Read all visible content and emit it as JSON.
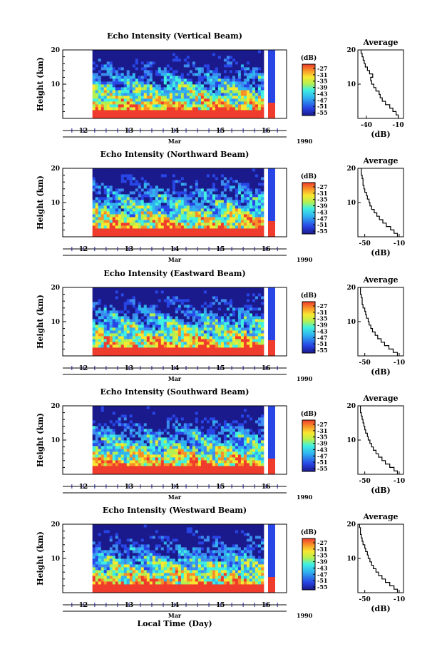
{
  "figure": {
    "xlabel": "Local Time (Day)",
    "month_label": "Mar",
    "year_label": "1990",
    "days": [
      "12",
      "13",
      "14",
      "15",
      "16"
    ],
    "colorbar_unit": "(dB)",
    "colorbar_ticks": [
      "-27",
      "-31",
      "-35",
      "-39",
      "-43",
      "-47",
      "-51",
      "-55"
    ],
    "average_title": "Average",
    "avg_xlabel": "(dB)",
    "ylabel": "Height (km)",
    "yticks": [
      "20",
      "10"
    ]
  },
  "chart_data": [
    {
      "type": "heatmap",
      "title": "Echo Intensity (Vertical Beam)",
      "ylabel": "Height (km)",
      "ylim": [
        0,
        20
      ],
      "x_days": [
        11.55,
        16.45
      ],
      "data_start_day": 12.2,
      "data_end_day": 15.95,
      "color_range_dB": [
        -55,
        -27
      ],
      "average": {
        "title": "Average",
        "xlabel": "(dB)",
        "xticks": [
          "-40",
          "-10"
        ],
        "xlim": [
          -48,
          -5
        ],
        "profile": [
          [
            0.5,
            -10
          ],
          [
            1.5,
            -12
          ],
          [
            2.5,
            -15
          ],
          [
            3.5,
            -18
          ],
          [
            4.5,
            -22
          ],
          [
            5.5,
            -25
          ],
          [
            6.5,
            -27
          ],
          [
            7.5,
            -28
          ],
          [
            8.5,
            -31
          ],
          [
            9.5,
            -33
          ],
          [
            10.5,
            -35
          ],
          [
            11.5,
            -36
          ],
          [
            12.5,
            -34
          ],
          [
            13.5,
            -37
          ],
          [
            14.5,
            -39
          ],
          [
            15.5,
            -41
          ],
          [
            16.5,
            -42
          ],
          [
            17.5,
            -43
          ],
          [
            18.5,
            -44
          ],
          [
            19.5,
            -45
          ]
        ]
      }
    },
    {
      "type": "heatmap",
      "title": "Echo Intensity (Northward Beam)",
      "ylabel": "Height (km)",
      "ylim": [
        0,
        20
      ],
      "x_days": [
        11.55,
        16.45
      ],
      "data_start_day": 12.2,
      "data_end_day": 15.95,
      "color_range_dB": [
        -55,
        -27
      ],
      "average": {
        "title": "Average",
        "xlabel": "(dB)",
        "xticks": [
          "-50",
          "-10"
        ],
        "xlim": [
          -58,
          -5
        ],
        "profile": [
          [
            0.5,
            -12
          ],
          [
            1.5,
            -16
          ],
          [
            2.5,
            -20
          ],
          [
            3.5,
            -25
          ],
          [
            4.5,
            -29
          ],
          [
            5.5,
            -33
          ],
          [
            6.5,
            -36
          ],
          [
            7.5,
            -39
          ],
          [
            8.5,
            -42
          ],
          [
            9.5,
            -44
          ],
          [
            10.5,
            -45
          ],
          [
            11.5,
            -47
          ],
          [
            12.5,
            -48
          ],
          [
            13.5,
            -50
          ],
          [
            14.5,
            -51
          ],
          [
            15.5,
            -52
          ],
          [
            16.5,
            -52
          ],
          [
            17.5,
            -53
          ],
          [
            18.5,
            -54
          ],
          [
            19.5,
            -54
          ]
        ]
      }
    },
    {
      "type": "heatmap",
      "title": "Echo Intensity (Eastward Beam)",
      "ylabel": "Height (km)",
      "ylim": [
        0,
        20
      ],
      "x_days": [
        11.55,
        16.45
      ],
      "data_start_day": 12.2,
      "data_end_day": 15.95,
      "color_range_dB": [
        -55,
        -27
      ],
      "average": {
        "title": "Average",
        "xlabel": "(dB)",
        "xticks": [
          "-50",
          "-10"
        ],
        "xlim": [
          -58,
          -5
        ],
        "profile": [
          [
            0.5,
            -12
          ],
          [
            1.5,
            -17
          ],
          [
            2.5,
            -22
          ],
          [
            3.5,
            -27
          ],
          [
            4.5,
            -31
          ],
          [
            5.5,
            -35
          ],
          [
            6.5,
            -38
          ],
          [
            7.5,
            -41
          ],
          [
            8.5,
            -43
          ],
          [
            9.5,
            -45
          ],
          [
            10.5,
            -46
          ],
          [
            11.5,
            -48
          ],
          [
            12.5,
            -49
          ],
          [
            13.5,
            -50
          ],
          [
            14.5,
            -52
          ],
          [
            15.5,
            -53
          ],
          [
            16.5,
            -53
          ],
          [
            17.5,
            -54
          ],
          [
            18.5,
            -55
          ],
          [
            19.5,
            -55
          ]
        ]
      }
    },
    {
      "type": "heatmap",
      "title": "Echo Intensity (Southward Beam)",
      "ylabel": "Height (km)",
      "ylim": [
        0,
        20
      ],
      "x_days": [
        11.55,
        16.45
      ],
      "data_start_day": 12.2,
      "data_end_day": 15.95,
      "color_range_dB": [
        -55,
        -27
      ],
      "average": {
        "title": "Average",
        "xlabel": "(dB)",
        "xticks": [
          "-50",
          "-10"
        ],
        "xlim": [
          -58,
          -5
        ],
        "profile": [
          [
            0.5,
            -12
          ],
          [
            1.5,
            -16
          ],
          [
            2.5,
            -21
          ],
          [
            3.5,
            -26
          ],
          [
            4.5,
            -30
          ],
          [
            5.5,
            -34
          ],
          [
            6.5,
            -37
          ],
          [
            7.5,
            -40
          ],
          [
            8.5,
            -42
          ],
          [
            9.5,
            -44
          ],
          [
            10.5,
            -46
          ],
          [
            11.5,
            -47
          ],
          [
            12.5,
            -49
          ],
          [
            13.5,
            -50
          ],
          [
            14.5,
            -51
          ],
          [
            15.5,
            -52
          ],
          [
            16.5,
            -53
          ],
          [
            17.5,
            -54
          ],
          [
            18.5,
            -55
          ],
          [
            19.5,
            -55
          ]
        ]
      }
    },
    {
      "type": "heatmap",
      "title": "Echo Intensity (Westward Beam)",
      "ylabel": "Height (km)",
      "ylim": [
        0,
        20
      ],
      "x_days": [
        11.55,
        16.45
      ],
      "data_start_day": 12.2,
      "data_end_day": 15.95,
      "color_range_dB": [
        -55,
        -27
      ],
      "average": {
        "title": "Average",
        "xlabel": "(dB)",
        "xticks": [
          "-50",
          "-10"
        ],
        "xlim": [
          -58,
          -5
        ],
        "profile": [
          [
            0.5,
            -12
          ],
          [
            1.5,
            -16
          ],
          [
            2.5,
            -21
          ],
          [
            3.5,
            -26
          ],
          [
            4.5,
            -30
          ],
          [
            5.5,
            -34
          ],
          [
            6.5,
            -37
          ],
          [
            7.5,
            -40
          ],
          [
            8.5,
            -42
          ],
          [
            9.5,
            -44
          ],
          [
            10.5,
            -46
          ],
          [
            11.5,
            -47
          ],
          [
            12.5,
            -49
          ],
          [
            13.5,
            -50
          ],
          [
            14.5,
            -52
          ],
          [
            15.5,
            -53
          ],
          [
            16.5,
            -54
          ],
          [
            17.5,
            -55
          ],
          [
            18.5,
            -55
          ],
          [
            19.5,
            -56
          ]
        ]
      }
    }
  ]
}
